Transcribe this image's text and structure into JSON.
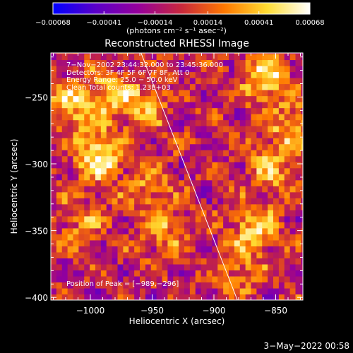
{
  "chart_data": {
    "type": "heatmap",
    "title": "Reconstructed RHESSI Image",
    "xlabel": "Heliocentric X (arcsec)",
    "ylabel": "Heliocentric Y (arcsec)",
    "xlim": [
      -1032,
      -828
    ],
    "ylim": [
      -402,
      -217
    ],
    "xticks": [
      {
        "value": -1000,
        "label": "−1000"
      },
      {
        "value": -950,
        "label": "−950"
      },
      {
        "value": -900,
        "label": "−900"
      },
      {
        "value": -850,
        "label": "−850"
      }
    ],
    "yticks": [
      {
        "value": -250,
        "label": "−250"
      },
      {
        "value": -300,
        "label": "−300"
      },
      {
        "value": -350,
        "label": "−350"
      },
      {
        "value": -400,
        "label": "−400"
      }
    ],
    "colorbar": {
      "range": [
        -0.00068,
        0.00068
      ],
      "tick_labels": [
        "−0.00068",
        "−0.00041",
        "−0.00014",
        "0.00014",
        "0.00041",
        "0.00068"
      ],
      "tick_values": [
        -0.00068,
        -0.00041,
        -0.00014,
        0.00014,
        0.00041,
        0.00068
      ],
      "label": "(photons cm⁻² s⁻¹ asec⁻²)",
      "colors": [
        "#0000ff",
        "#5a00c8",
        "#96009a",
        "#c8283c",
        "#ff7800",
        "#ffdc32",
        "#ffffff"
      ]
    },
    "annotations": [
      "7−Nov−2002 23:44:32.000 to 23:45:36.000",
      "Detectors: 3F 4F 5F 6F 7F 8F, Att 0",
      "Energy Range: 25.0 − 50.0 keV",
      "Clean     Total counts: 1.23E+03"
    ],
    "peak_text": "Position of Peak = [−989,−296]",
    "peak": [
      -989,
      -296
    ],
    "limb_line": [
      [
        -959,
        -217
      ],
      [
        -881,
        -402
      ]
    ],
    "bright_regions": [
      {
        "x": -994,
        "y": -296,
        "peak": 0.00068
      },
      {
        "x": -1018,
        "y": -258,
        "peak": 0.0005
      },
      {
        "x": -985,
        "y": -250,
        "peak": 0.00045
      },
      {
        "x": -958,
        "y": -260,
        "peak": 0.00035
      },
      {
        "x": -1010,
        "y": -345,
        "peak": 0.0003
      },
      {
        "x": -955,
        "y": -320,
        "peak": 0.0003
      },
      {
        "x": -944,
        "y": -352,
        "peak": 0.00035
      },
      {
        "x": -860,
        "y": -238,
        "peak": 0.00058
      },
      {
        "x": -840,
        "y": -275,
        "peak": 0.0004
      },
      {
        "x": -855,
        "y": -305,
        "peak": 0.0004
      },
      {
        "x": -870,
        "y": -350,
        "peak": 0.0005
      },
      {
        "x": -880,
        "y": -385,
        "peak": 0.0003
      }
    ]
  },
  "footer": {
    "timestamp": "3−May−2022 00:58"
  }
}
